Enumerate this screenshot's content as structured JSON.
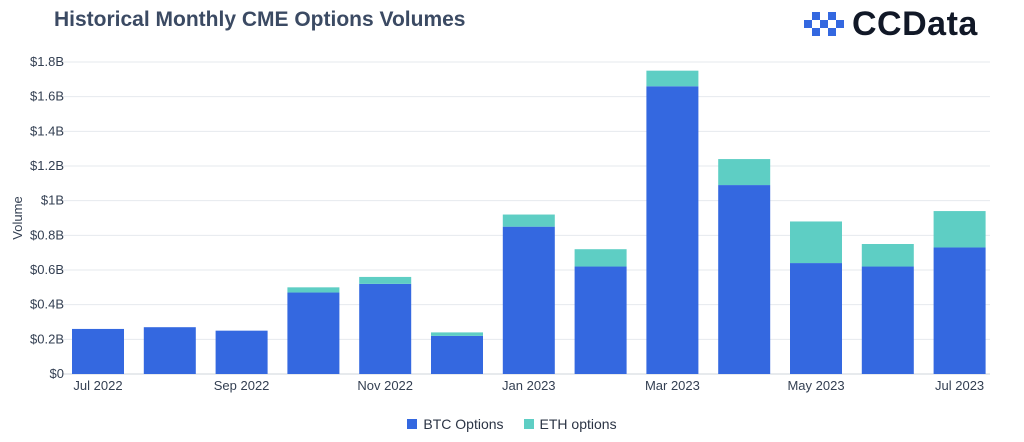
{
  "title": "Historical Monthly CME Options Volumes",
  "brand": "CCData",
  "colors": {
    "btc": "#3468e0",
    "eth": "#5ecec4",
    "grid": "#e6e9ee",
    "axis": "#333f52"
  },
  "chart_data": {
    "type": "bar",
    "stacked": true,
    "categories": [
      "Jul 2022",
      "Aug 2022",
      "Sep 2022",
      "Oct 2022",
      "Nov 2022",
      "Dec 2022",
      "Jan 2023",
      "Feb 2023",
      "Mar 2023",
      "Apr 2023",
      "May 2023",
      "Jun 2023",
      "Jul 2023"
    ],
    "x_tick_labels": [
      "Jul 2022",
      "",
      "Sep 2022",
      "",
      "Nov 2022",
      "",
      "Jan 2023",
      "",
      "Mar 2023",
      "",
      "May 2023",
      "",
      "Jul 2023"
    ],
    "series": [
      {
        "name": "BTC Options",
        "values": [
          0.26,
          0.27,
          0.25,
          0.47,
          0.52,
          0.22,
          0.85,
          0.62,
          1.66,
          1.09,
          0.64,
          0.62,
          0.73
        ]
      },
      {
        "name": "ETH options",
        "values": [
          0.0,
          0.0,
          0.0,
          0.03,
          0.04,
          0.02,
          0.07,
          0.1,
          0.09,
          0.15,
          0.24,
          0.13,
          0.21
        ]
      }
    ],
    "ylabel": "Volume",
    "ylim": [
      0,
      1.8
    ],
    "yticks": [
      0,
      0.2,
      0.4,
      0.6,
      0.8,
      1.0,
      1.2,
      1.4,
      1.6,
      1.8
    ],
    "ytick_labels": [
      "$0",
      "$0.2B",
      "$0.4B",
      "$0.6B",
      "$0.8B",
      "$1B",
      "$1.2B",
      "$1.4B",
      "$1.6B",
      "$1.8B"
    ],
    "grid": true,
    "legend_position": "bottom-center"
  }
}
